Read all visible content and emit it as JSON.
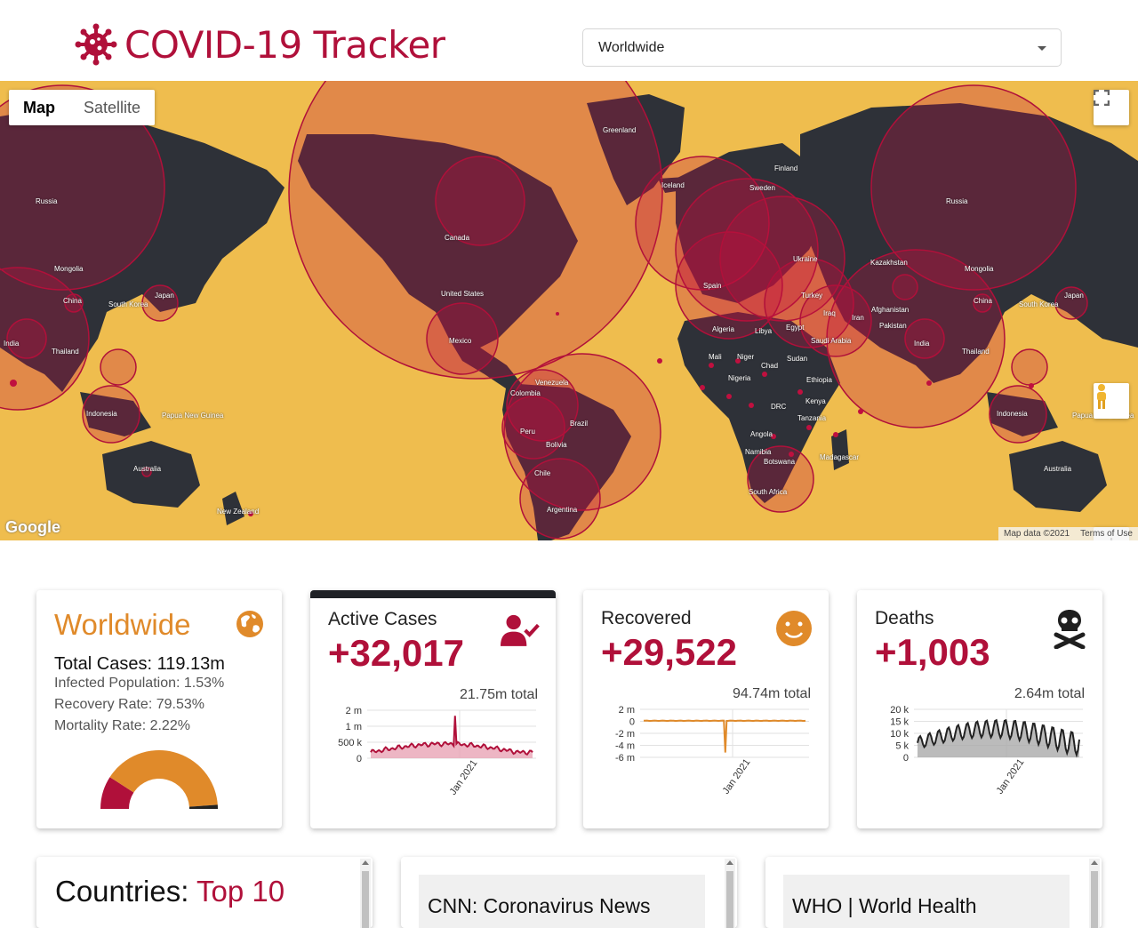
{
  "header": {
    "logo_icon": "virus-icon",
    "title": "COVID-19 Tracker",
    "country_select": {
      "value": "Worldwide"
    }
  },
  "map": {
    "type_control": {
      "map_label": "Map",
      "satellite_label": "Satellite",
      "active": "Map"
    },
    "attribution": {
      "logo": "Google",
      "data": "Map data ©2021",
      "terms": "Terms of Use"
    },
    "colors": {
      "ocean": "#efbd4e",
      "land": "#2e3138",
      "circle_fill": "#c0103f",
      "circle_stroke": "#b0103a"
    },
    "labels": [
      "Russia",
      "Mongolia",
      "China",
      "South Korea",
      "Japan",
      "India",
      "Thailand",
      "Indonesia",
      "Papua New Guinea",
      "Australia",
      "New Zealand",
      "Greenland",
      "Iceland",
      "Finland",
      "Sweden",
      "Canada",
      "United States",
      "Mexico",
      "Venezuela",
      "Colombia",
      "Peru",
      "Brazil",
      "Bolivia",
      "Chile",
      "Argentina",
      "Kazakhstan",
      "Afghanistan",
      "Pakistan",
      "Iran",
      "Iraq",
      "Egypt",
      "Saudi Arabia",
      "Libya",
      "Algeria",
      "Mali",
      "Niger",
      "Chad",
      "Sudan",
      "Ethiopia",
      "Nigeria",
      "DRC",
      "Kenya",
      "Tanzania",
      "Angola",
      "Namibia",
      "Botswana",
      "Madagascar",
      "South Africa",
      "Spain",
      "Ukraine",
      "Turkey"
    ]
  },
  "worldwide": {
    "title": "Worldwide",
    "icon": "globe-icon",
    "total_cases": "Total Cases: 119.13m",
    "infected": "Infected Population: 1.53%",
    "recovery": "Recovery Rate: 79.53%",
    "mortality": "Mortality Rate: 2.22%",
    "gauge": {
      "recovered_pct": 79.53,
      "active_pct": 18.25,
      "deaths_pct": 2.22,
      "colors": {
        "recovered": "#e08a2a",
        "active": "#b0103a",
        "deaths": "#222"
      }
    }
  },
  "cards": [
    {
      "title": "Active Cases",
      "value": "+32,017",
      "total": "21.75m total",
      "icon": "user-check-icon",
      "color": "#b0103a",
      "fill": "#e8a4b5",
      "chart_data": {
        "type": "area",
        "yticks": [
          "2 m",
          "1 m",
          "500 k",
          "0"
        ],
        "xtick": "Jan 2021",
        "ylim": [
          0,
          2000000
        ]
      }
    },
    {
      "title": "Recovered",
      "value": "+29,522",
      "total": "94.74m total",
      "icon": "smile-icon",
      "color": "#e08a2a",
      "fill": "#f3c99a",
      "chart_data": {
        "type": "line",
        "yticks": [
          "2 m",
          "0",
          "-2 m",
          "-4 m",
          "-6 m"
        ],
        "xtick": "Jan 2021",
        "ylim": [
          -6000000,
          2000000
        ]
      }
    },
    {
      "title": "Deaths",
      "value": "+1,003",
      "total": "2.64m total",
      "icon": "skull-crossbones-icon",
      "color": "#222",
      "fill": "#aaaaaa",
      "chart_data": {
        "type": "area",
        "yticks": [
          "20 k",
          "15 k",
          "10 k",
          "5 k",
          "0"
        ],
        "xtick": "Jan 2021",
        "ylim": [
          0,
          20000
        ]
      }
    }
  ],
  "countries_panel": {
    "title_prefix": "Countries: ",
    "title_highlight": "Top 10"
  },
  "news_panels": [
    {
      "heading": "CNN: Coronavirus News"
    },
    {
      "heading": "WHO | World Health"
    }
  ]
}
